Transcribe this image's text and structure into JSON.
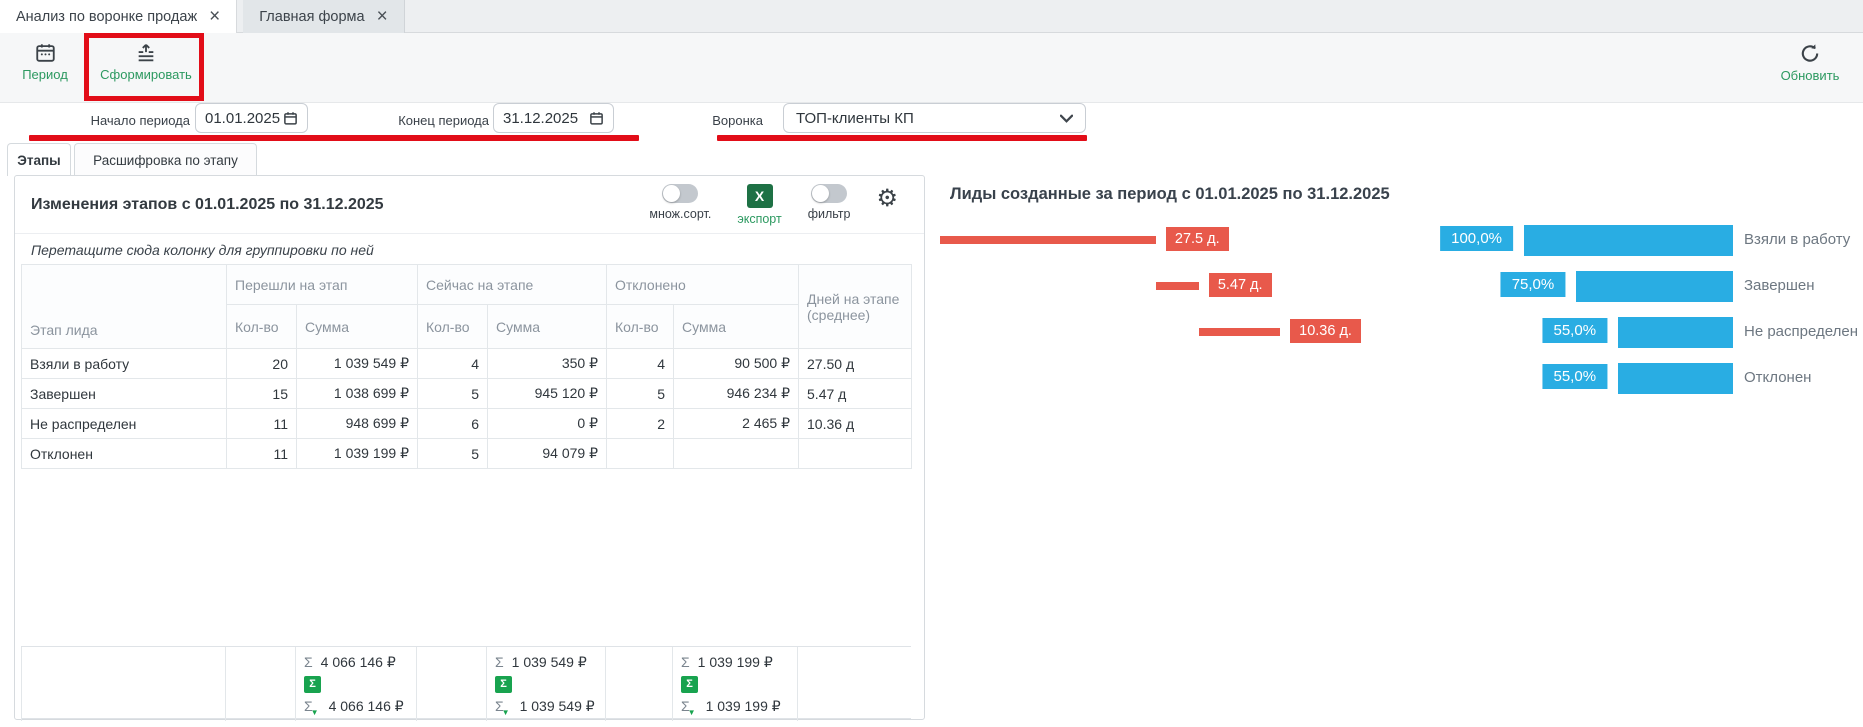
{
  "window_tabs": [
    {
      "label": "Анализ по воронке продаж",
      "close": "×"
    },
    {
      "label": "Главная форма",
      "close": "×"
    }
  ],
  "toolbar": {
    "period_label": "Период",
    "generate_label": "Сформировать",
    "refresh_label": "Обновить"
  },
  "filters": {
    "start_label": "Начало периода",
    "start_value": "01.01.2025",
    "end_label": "Конец периода",
    "end_value": "31.12.2025",
    "funnel_label": "Воронка",
    "funnel_value": "ТОП-клиенты КП"
  },
  "subtabs": [
    {
      "label": "Этапы"
    },
    {
      "label": "Расшифровка по этапу"
    }
  ],
  "left_panel": {
    "title": "Изменения этапов с 01.01.2025 по 31.12.2025",
    "controls": {
      "multisort_label": "множ.сорт.",
      "export_label": "экспорт",
      "export_icon_letter": "X",
      "filter_label": "фильтр"
    },
    "drag_hint": "Перетащите сюда колонку для группировки по ней",
    "table": {
      "stage_header": "Этап лида",
      "groups": [
        "Перешли на этап",
        "Сейчас на этапе",
        "Отклонено"
      ],
      "qty_header": "Кол-во",
      "sum_header": "Сумма",
      "days_header": "Дней на этапе (среднее)",
      "rows": [
        {
          "stage": "Взяли в работу",
          "moved_qty": "20",
          "moved_sum": "1 039 549 ₽",
          "now_qty": "4",
          "now_sum": "350 ₽",
          "rej_qty": "4",
          "rej_sum": "90 500 ₽",
          "days": "27.50 д"
        },
        {
          "stage": "Завершен",
          "moved_qty": "15",
          "moved_sum": "1 038 699 ₽",
          "now_qty": "5",
          "now_sum": "945 120 ₽",
          "rej_qty": "5",
          "rej_sum": "946 234 ₽",
          "days": "5.47 д"
        },
        {
          "stage": "Не распределен",
          "moved_qty": "11",
          "moved_sum": "948 699 ₽",
          "now_qty": "6",
          "now_sum": "0 ₽",
          "rej_qty": "2",
          "rej_sum": "2 465 ₽",
          "days": "10.36 д"
        },
        {
          "stage": "Отклонен",
          "moved_qty": "11",
          "moved_sum": "1 039 199 ₽",
          "now_qty": "5",
          "now_sum": "94 079 ₽",
          "rej_qty": "",
          "rej_sum": "",
          "days": ""
        }
      ],
      "totals": {
        "moved": {
          "sum": "4 066 146 ₽",
          "sum_filtered": "4 066 146 ₽"
        },
        "now": {
          "sum": "1 039 549 ₽",
          "sum_filtered": "1 039 549 ₽"
        },
        "rejected": {
          "sum": "1 039 199 ₽",
          "sum_filtered": "1 039 199 ₽"
        }
      }
    }
  },
  "right_panel": {
    "title": "Лиды созданные за период с 01.01.2025 по 31.12.2025"
  },
  "chart_data": {
    "type": "funnel",
    "title": "Лиды созданные за период с 01.01.2025 по 31.12.2025",
    "legend_position": "right",
    "rows": [
      {
        "stage": "Взяли в работу",
        "percent": 100.0,
        "percent_label": "100,0%",
        "days": 27.5,
        "days_label": "27.5 д."
      },
      {
        "stage": "Завершен",
        "percent": 75.0,
        "percent_label": "75,0%",
        "days": 5.47,
        "days_label": "5.47 д."
      },
      {
        "stage": "Не распределен",
        "percent": 55.0,
        "percent_label": "55,0%",
        "days": 10.36,
        "days_label": "10.36 д."
      },
      {
        "stage": "Отклонен",
        "percent": 55.0,
        "percent_label": "55,0%",
        "days": null,
        "days_label": null
      }
    ]
  },
  "symbols": {
    "sigma": "Σ",
    "filter_triangle": "▼",
    "gear": "⚙"
  },
  "colors": {
    "accent_green": "#2c9960",
    "annotation_red": "#e20d18",
    "funnel_blue": "#29ade3",
    "days_red": "#e8594b",
    "excel_green": "#1e7145",
    "sigma_green": "#18a34f"
  }
}
